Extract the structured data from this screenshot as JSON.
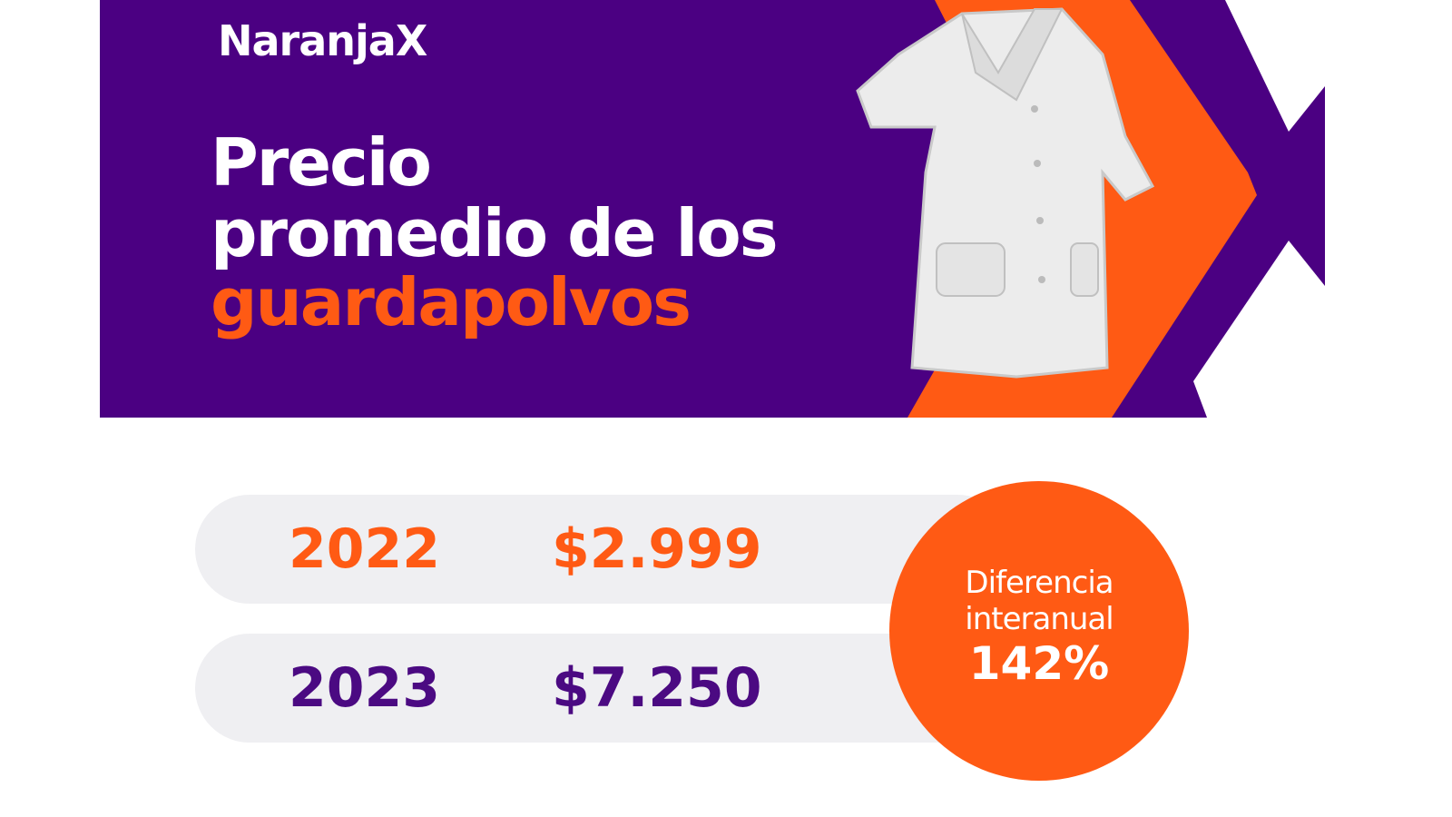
{
  "header": {
    "brand": "NaranjaX",
    "title_lines": [
      "Precio",
      "promedio de los"
    ],
    "title_highlight": "guardapolvos"
  },
  "table": {
    "rows": [
      [
        "2022",
        "$2.999"
      ],
      [
        "2023",
        "$7.250"
      ]
    ]
  },
  "badge": {
    "lines": [
      "Diferencia",
      "interanual"
    ],
    "value": "142%"
  }
}
